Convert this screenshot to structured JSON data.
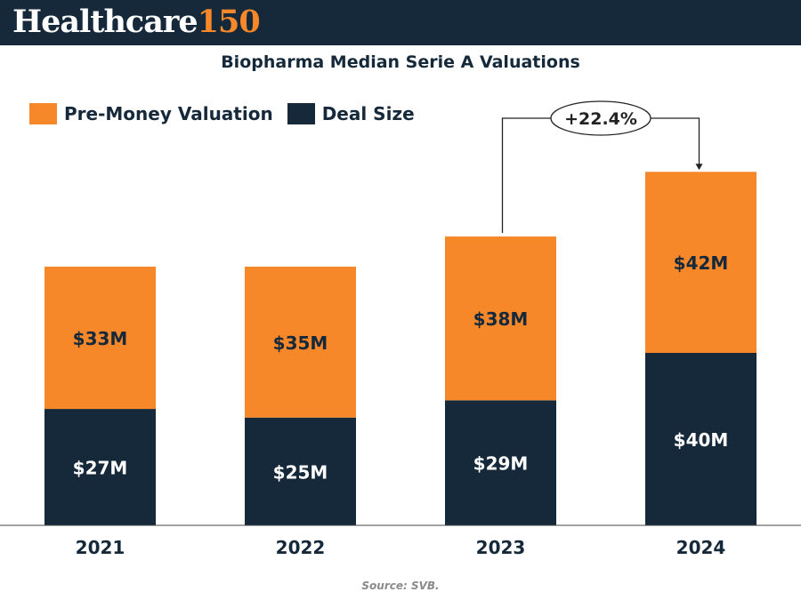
{
  "header": {
    "brand_word": "Healthcare",
    "brand_number": "150"
  },
  "colors": {
    "header_bg": "#15293a",
    "brand_accent": "#f7882a",
    "pre_money": "#f7882a",
    "deal_size": "#15293a"
  },
  "chart_data": {
    "type": "bar",
    "stacked": true,
    "title": "Biopharma Median Serie A Valuations",
    "categories": [
      "2021",
      "2022",
      "2023",
      "2024"
    ],
    "series": [
      {
        "name": "Deal Size",
        "values": [
          27,
          25,
          29,
          40
        ],
        "labels": [
          "$27M",
          "$25M",
          "$29M",
          "$40M"
        ],
        "color": "#15293a"
      },
      {
        "name": "Pre-Money Valuation",
        "values": [
          33,
          35,
          38,
          42
        ],
        "labels": [
          "$33M",
          "$35M",
          "$38M",
          "$42M"
        ],
        "color": "#f7882a"
      }
    ],
    "legend_order": [
      "Pre-Money Valuation",
      "Deal Size"
    ],
    "legend_position": "top-left",
    "ylim": [
      0,
      85
    ],
    "xlabel": "",
    "ylabel": "",
    "grid": false,
    "annotation": {
      "text": "+22.4%",
      "from_category": "2023",
      "to_category": "2024"
    }
  },
  "source": "Source: SVB."
}
